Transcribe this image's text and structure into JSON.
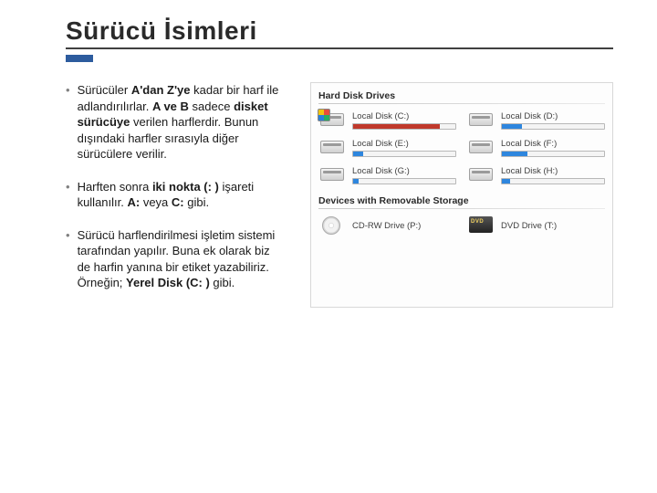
{
  "title": "Sürücü İsimleri",
  "colors": {
    "accent": "#2d5c9e",
    "rule": "#404040",
    "bar_red": "#c0392b",
    "bar_blue": "#2e86de",
    "bar_bg": "#f4f4f4"
  },
  "bullets": [
    {
      "parts": [
        {
          "t": "Sürücüler ",
          "b": false
        },
        {
          "t": "A'dan Z'ye",
          "b": true
        },
        {
          "t": " kadar bir harf ile adlandırılırlar. ",
          "b": false
        },
        {
          "t": "A ve B",
          "b": true
        },
        {
          "t": " sadece ",
          "b": false
        },
        {
          "t": "disket sürücüye",
          "b": true
        },
        {
          "t": " verilen harflerdir. Bunun dışındaki harfler sırasıyla diğer sürücülere verilir.",
          "b": false
        }
      ]
    },
    {
      "parts": [
        {
          "t": "Harften sonra ",
          "b": false
        },
        {
          "t": "iki nokta (: )",
          "b": true
        },
        {
          "t": " işareti kullanılır. ",
          "b": false
        },
        {
          "t": "A:",
          "b": true
        },
        {
          "t": " veya ",
          "b": false
        },
        {
          "t": "C:",
          "b": true
        },
        {
          "t": " gibi.",
          "b": false
        }
      ]
    },
    {
      "parts": [
        {
          "t": "Sürücü harflendirilmesi işletim sistemi tarafından yapılır. Buna ek olarak biz de harfin yanına bir etiket yazabiliriz. Örneğin; ",
          "b": false
        },
        {
          "t": "Yerel Disk (C: )",
          "b": true
        },
        {
          "t": " gibi.",
          "b": false
        }
      ]
    }
  ],
  "explorer": {
    "sections": [
      {
        "header": "Hard Disk Drives",
        "type": "hdd",
        "items": [
          {
            "label": "Local Disk (C:)",
            "badge": true,
            "fill_pct": 85,
            "fill_color": "#c0392b"
          },
          {
            "label": "Local Disk (D:)",
            "badge": false,
            "fill_pct": 20,
            "fill_color": "#2e86de"
          },
          {
            "label": "Local Disk (E:)",
            "badge": false,
            "fill_pct": 10,
            "fill_color": "#2e86de"
          },
          {
            "label": "Local Disk (F:)",
            "badge": false,
            "fill_pct": 25,
            "fill_color": "#2e86de"
          },
          {
            "label": "Local Disk (G:)",
            "badge": false,
            "fill_pct": 5,
            "fill_color": "#2e86de"
          },
          {
            "label": "Local Disk (H:)",
            "badge": false,
            "fill_pct": 8,
            "fill_color": "#2e86de"
          }
        ]
      },
      {
        "header": "Devices with Removable Storage",
        "type": "removable",
        "items": [
          {
            "label": "CD-RW Drive (P:)",
            "icon": "cd"
          },
          {
            "label": "DVD Drive (T:)",
            "icon": "dvd"
          }
        ]
      }
    ]
  }
}
